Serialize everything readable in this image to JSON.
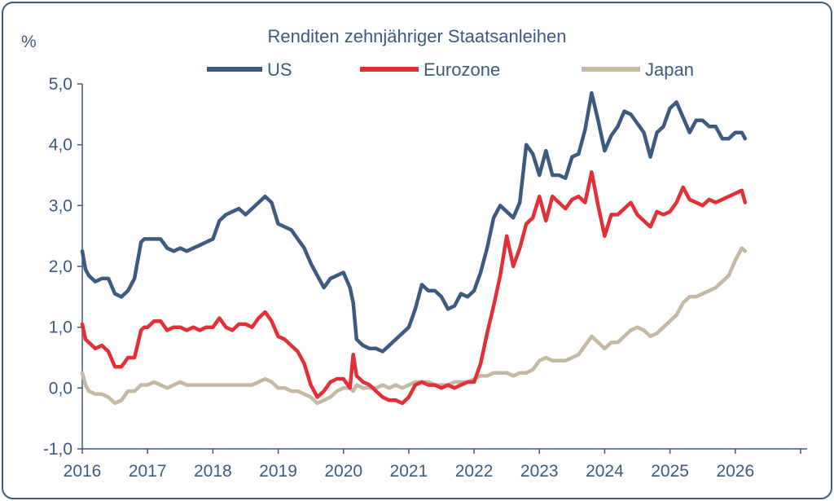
{
  "chart_data": {
    "type": "line",
    "title": "Renditen zehnjähriger Staatsanleihen",
    "ylabel": "%",
    "xlabel": "",
    "ylim": [
      -1.0,
      5.0
    ],
    "xlim": [
      2016.0,
      2027.1
    ],
    "grid": false,
    "legend_position": "top",
    "y_ticks": [
      "-1,0",
      "0,0",
      "1,0",
      "2,0",
      "3,0",
      "4,0",
      "5,0"
    ],
    "x_ticks": [
      "2016",
      "2017",
      "2018",
      "2019",
      "2020",
      "2021",
      "2022",
      "2023",
      "2024",
      "2025",
      "2026"
    ],
    "axis_color": "#3d5a80",
    "series": [
      {
        "name": "US",
        "color": "#3d5a80",
        "x": [
          2016.0,
          2016.05,
          2016.1,
          2016.2,
          2016.3,
          2016.4,
          2016.5,
          2016.6,
          2016.7,
          2016.8,
          2016.9,
          2016.95,
          2017.0,
          2017.1,
          2017.2,
          2017.3,
          2017.4,
          2017.5,
          2017.6,
          2017.7,
          2017.8,
          2017.9,
          2018.0,
          2018.1,
          2018.2,
          2018.3,
          2018.4,
          2018.5,
          2018.6,
          2018.7,
          2018.8,
          2018.9,
          2019.0,
          2019.1,
          2019.2,
          2019.3,
          2019.4,
          2019.5,
          2019.6,
          2019.7,
          2019.8,
          2019.9,
          2020.0,
          2020.1,
          2020.15,
          2020.2,
          2020.3,
          2020.4,
          2020.5,
          2020.6,
          2020.7,
          2020.8,
          2020.9,
          2021.0,
          2021.1,
          2021.2,
          2021.3,
          2021.4,
          2021.5,
          2021.6,
          2021.7,
          2021.8,
          2021.9,
          2022.0,
          2022.1,
          2022.2,
          2022.3,
          2022.4,
          2022.5,
          2022.6,
          2022.7,
          2022.8,
          2022.9,
          2023.0,
          2023.1,
          2023.2,
          2023.3,
          2023.4,
          2023.5,
          2023.6,
          2023.7,
          2023.8,
          2023.9,
          2024.0,
          2024.1,
          2024.2,
          2024.3,
          2024.4,
          2024.5,
          2024.6,
          2024.7,
          2024.8,
          2024.9,
          2025.0,
          2025.1,
          2025.2,
          2025.3,
          2025.4,
          2025.5,
          2025.6,
          2025.7,
          2025.8,
          2025.9,
          2026.0,
          2026.1,
          2026.15
        ],
        "y": [
          2.25,
          1.95,
          1.85,
          1.75,
          1.8,
          1.8,
          1.55,
          1.5,
          1.6,
          1.8,
          2.4,
          2.45,
          2.45,
          2.45,
          2.45,
          2.3,
          2.25,
          2.3,
          2.25,
          2.3,
          2.35,
          2.4,
          2.45,
          2.75,
          2.85,
          2.9,
          2.95,
          2.85,
          2.95,
          3.05,
          3.15,
          3.05,
          2.7,
          2.65,
          2.6,
          2.45,
          2.3,
          2.05,
          1.85,
          1.65,
          1.8,
          1.85,
          1.9,
          1.65,
          1.4,
          0.8,
          0.7,
          0.65,
          0.65,
          0.6,
          0.7,
          0.8,
          0.9,
          1.0,
          1.3,
          1.7,
          1.6,
          1.6,
          1.5,
          1.3,
          1.35,
          1.55,
          1.5,
          1.6,
          1.9,
          2.3,
          2.8,
          3.0,
          2.9,
          2.8,
          3.05,
          4.0,
          3.85,
          3.5,
          3.9,
          3.5,
          3.5,
          3.45,
          3.8,
          3.85,
          4.25,
          4.85,
          4.4,
          3.9,
          4.15,
          4.3,
          4.55,
          4.5,
          4.35,
          4.2,
          3.8,
          4.2,
          4.3,
          4.6,
          4.7,
          4.45,
          4.2,
          4.4,
          4.4,
          4.3,
          4.3,
          4.1,
          4.1,
          4.2,
          4.2,
          4.1
        ]
      },
      {
        "name": "Eurozone",
        "color": "#e52f37",
        "x": [
          2016.0,
          2016.05,
          2016.1,
          2016.2,
          2016.3,
          2016.4,
          2016.5,
          2016.6,
          2016.7,
          2016.8,
          2016.9,
          2016.95,
          2017.0,
          2017.1,
          2017.2,
          2017.3,
          2017.4,
          2017.5,
          2017.6,
          2017.7,
          2017.8,
          2017.9,
          2018.0,
          2018.1,
          2018.2,
          2018.3,
          2018.4,
          2018.5,
          2018.6,
          2018.7,
          2018.8,
          2018.9,
          2019.0,
          2019.1,
          2019.2,
          2019.3,
          2019.4,
          2019.5,
          2019.6,
          2019.7,
          2019.8,
          2019.9,
          2020.0,
          2020.1,
          2020.15,
          2020.2,
          2020.3,
          2020.4,
          2020.5,
          2020.6,
          2020.7,
          2020.8,
          2020.9,
          2021.0,
          2021.1,
          2021.2,
          2021.3,
          2021.4,
          2021.5,
          2021.6,
          2021.7,
          2021.8,
          2021.9,
          2022.0,
          2022.1,
          2022.2,
          2022.3,
          2022.4,
          2022.5,
          2022.6,
          2022.7,
          2022.8,
          2022.9,
          2023.0,
          2023.1,
          2023.2,
          2023.3,
          2023.4,
          2023.5,
          2023.6,
          2023.7,
          2023.8,
          2023.9,
          2024.0,
          2024.1,
          2024.2,
          2024.3,
          2024.4,
          2024.5,
          2024.6,
          2024.7,
          2024.8,
          2024.9,
          2025.0,
          2025.1,
          2025.2,
          2025.3,
          2025.4,
          2025.5,
          2025.6,
          2025.7,
          2025.8,
          2025.9,
          2026.0,
          2026.1,
          2026.15
        ],
        "y": [
          1.05,
          0.8,
          0.75,
          0.65,
          0.7,
          0.6,
          0.35,
          0.35,
          0.5,
          0.5,
          0.95,
          1.0,
          1.0,
          1.1,
          1.1,
          0.95,
          1.0,
          1.0,
          0.95,
          1.0,
          0.95,
          1.0,
          1.0,
          1.15,
          1.0,
          0.95,
          1.05,
          1.05,
          1.0,
          1.15,
          1.25,
          1.1,
          0.85,
          0.8,
          0.7,
          0.6,
          0.4,
          0.05,
          -0.15,
          -0.05,
          0.1,
          0.15,
          0.15,
          0.0,
          0.55,
          0.2,
          0.1,
          0.05,
          -0.05,
          -0.15,
          -0.2,
          -0.2,
          -0.25,
          -0.15,
          0.05,
          0.1,
          0.05,
          0.05,
          0.0,
          0.05,
          0.0,
          0.05,
          0.1,
          0.1,
          0.4,
          0.9,
          1.35,
          1.85,
          2.5,
          2.0,
          2.3,
          2.7,
          2.8,
          3.15,
          2.75,
          3.15,
          3.05,
          2.95,
          3.1,
          3.15,
          3.05,
          3.55,
          3.0,
          2.5,
          2.85,
          2.85,
          2.95,
          3.05,
          2.85,
          2.75,
          2.65,
          2.9,
          2.85,
          2.9,
          3.05,
          3.3,
          3.1,
          3.05,
          3.0,
          3.1,
          3.05,
          3.1,
          3.15,
          3.2,
          3.25,
          3.05
        ]
      },
      {
        "name": "Japan",
        "color": "#c3b9a5",
        "x": [
          2016.0,
          2016.05,
          2016.1,
          2016.2,
          2016.3,
          2016.4,
          2016.5,
          2016.6,
          2016.7,
          2016.8,
          2016.9,
          2016.95,
          2017.0,
          2017.1,
          2017.2,
          2017.3,
          2017.4,
          2017.5,
          2017.6,
          2017.7,
          2017.8,
          2017.9,
          2018.0,
          2018.1,
          2018.2,
          2018.3,
          2018.4,
          2018.5,
          2018.6,
          2018.7,
          2018.8,
          2018.9,
          2019.0,
          2019.1,
          2019.2,
          2019.3,
          2019.4,
          2019.5,
          2019.6,
          2019.7,
          2019.8,
          2019.9,
          2020.0,
          2020.1,
          2020.15,
          2020.2,
          2020.3,
          2020.4,
          2020.5,
          2020.6,
          2020.7,
          2020.8,
          2020.9,
          2021.0,
          2021.1,
          2021.2,
          2021.3,
          2021.4,
          2021.5,
          2021.6,
          2021.7,
          2021.8,
          2021.9,
          2022.0,
          2022.1,
          2022.2,
          2022.3,
          2022.4,
          2022.5,
          2022.6,
          2022.7,
          2022.8,
          2022.9,
          2023.0,
          2023.1,
          2023.2,
          2023.3,
          2023.4,
          2023.5,
          2023.6,
          2023.7,
          2023.8,
          2023.9,
          2024.0,
          2024.1,
          2024.2,
          2024.3,
          2024.4,
          2024.5,
          2024.6,
          2024.7,
          2024.8,
          2024.9,
          2025.0,
          2025.1,
          2025.2,
          2025.3,
          2025.4,
          2025.5,
          2025.6,
          2025.7,
          2025.8,
          2025.9,
          2026.0,
          2026.1,
          2026.15
        ],
        "y": [
          0.25,
          0.05,
          -0.05,
          -0.1,
          -0.1,
          -0.15,
          -0.25,
          -0.2,
          -0.05,
          -0.05,
          0.05,
          0.05,
          0.05,
          0.1,
          0.05,
          0.0,
          0.05,
          0.1,
          0.05,
          0.05,
          0.05,
          0.05,
          0.05,
          0.05,
          0.05,
          0.05,
          0.05,
          0.05,
          0.05,
          0.1,
          0.15,
          0.1,
          0.0,
          0.0,
          -0.05,
          -0.05,
          -0.1,
          -0.15,
          -0.25,
          -0.2,
          -0.15,
          -0.05,
          0.0,
          0.0,
          -0.05,
          0.05,
          0.0,
          0.0,
          0.0,
          0.05,
          0.0,
          0.05,
          0.0,
          0.05,
          0.1,
          0.1,
          0.1,
          0.05,
          0.05,
          0.05,
          0.1,
          0.1,
          0.1,
          0.15,
          0.2,
          0.2,
          0.25,
          0.25,
          0.25,
          0.2,
          0.25,
          0.25,
          0.3,
          0.45,
          0.5,
          0.45,
          0.45,
          0.45,
          0.5,
          0.55,
          0.7,
          0.85,
          0.75,
          0.65,
          0.75,
          0.75,
          0.85,
          0.95,
          1.0,
          0.95,
          0.85,
          0.9,
          1.0,
          1.1,
          1.2,
          1.4,
          1.5,
          1.5,
          1.55,
          1.6,
          1.65,
          1.75,
          1.85,
          2.1,
          2.3,
          2.25
        ]
      }
    ]
  }
}
